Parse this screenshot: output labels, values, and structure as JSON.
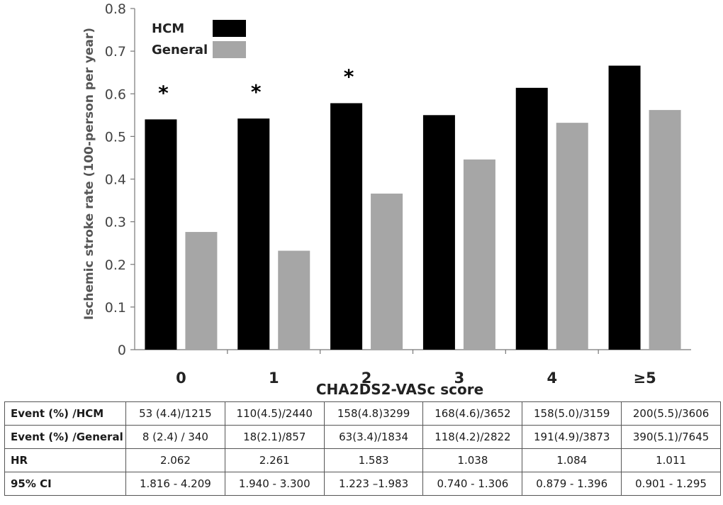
{
  "chart_data": {
    "type": "bar",
    "title": "",
    "xlabel": "CHA2DS2-VASc score",
    "ylabel": "Ischemic stroke rate (100-person per year)",
    "ylim": [
      0,
      0.8
    ],
    "yticks": [
      "0",
      "0.1",
      "0.2",
      "0.3",
      "0.4",
      "0.5",
      "0.6",
      "0.7",
      "0.8"
    ],
    "categories": [
      "0",
      "1",
      "2",
      "3",
      "4",
      "≥5"
    ],
    "series": [
      {
        "name": "HCM",
        "color": "#000000",
        "values": [
          0.54,
          0.542,
          0.578,
          0.55,
          0.614,
          0.666
        ]
      },
      {
        "name": "General",
        "color": "#a6a6a6",
        "values": [
          0.276,
          0.232,
          0.366,
          0.446,
          0.532,
          0.562
        ]
      }
    ],
    "significance_marks": [
      {
        "category": "0",
        "label": "*"
      },
      {
        "category": "1",
        "label": "*"
      },
      {
        "category": "2",
        "label": "*"
      }
    ],
    "legend": {
      "placement": "top-left",
      "entries": [
        "HCM",
        "General"
      ]
    }
  },
  "table": {
    "rows": [
      {
        "label": "Event (%) /HCM",
        "cells": [
          "53 (4.4)/1215",
          "110(4.5)/2440",
          "158(4.8)3299",
          "168(4.6)/3652",
          "158(5.0)/3159",
          "200(5.5)/3606"
        ]
      },
      {
        "label": "Event (%) /General",
        "cells": [
          "8 (2.4) / 340",
          "18(2.1)/857",
          "63(3.4)/1834",
          "118(4.2)/2822",
          "191(4.9)/3873",
          "390(5.1)/7645"
        ]
      },
      {
        "label": "HR",
        "cells": [
          "2.062",
          "2.261",
          "1.583",
          "1.038",
          "1.084",
          "1.011"
        ]
      },
      {
        "label": "95% CI",
        "cells": [
          "1.816 - 4.209",
          "1.940 - 3.300",
          "1.223 –1.983",
          "0.740 - 1.306",
          "0.879 - 1.396",
          "0.901 - 1.295"
        ]
      }
    ]
  }
}
